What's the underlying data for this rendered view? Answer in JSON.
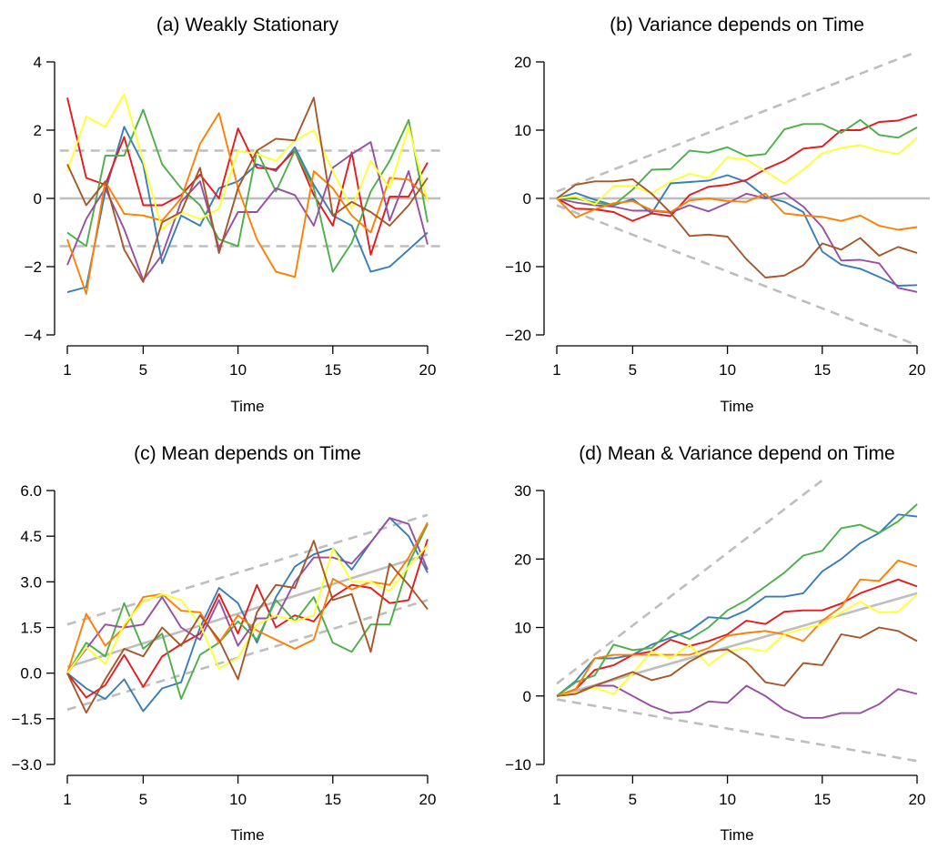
{
  "colors": {
    "blue": "#377EB8",
    "red": "#E41A1C",
    "green": "#4DAF4A",
    "purple": "#984EA3",
    "orange": "#FF7F00",
    "yellow": "#FFFF33",
    "brown": "#A65628",
    "reference": "#BEBEBE"
  },
  "chart_data": [
    {
      "type": "line",
      "title": "(a) Weakly Stationary",
      "xlabel": "Time",
      "ylabel": "",
      "x": [
        1,
        2,
        3,
        4,
        5,
        6,
        7,
        8,
        9,
        10,
        11,
        12,
        13,
        14,
        15,
        16,
        17,
        18,
        19,
        20
      ],
      "xticks": [
        1,
        5,
        10,
        15,
        20
      ],
      "xtick_labels": [
        "1",
        "5",
        "10",
        "15",
        "20"
      ],
      "ylim": [
        -4,
        4
      ],
      "yticks": [
        -4,
        -2,
        0,
        2,
        4
      ],
      "ytick_labels": [
        "−4",
        "−2",
        "0",
        "2",
        "4"
      ],
      "reference_lines": [
        {
          "style": "solid",
          "points": [
            [
              0.6,
              0
            ],
            [
              21,
              0
            ]
          ]
        },
        {
          "style": "dashed",
          "points": [
            [
              0.6,
              1.4
            ],
            [
              21,
              1.4
            ]
          ]
        },
        {
          "style": "dashed",
          "points": [
            [
              0.6,
              -1.4
            ],
            [
              21,
              -1.4
            ]
          ]
        }
      ],
      "series": [
        {
          "color": "blue",
          "values": [
            -2.75,
            -2.6,
            0.2,
            2.1,
            1.0,
            -1.9,
            -0.5,
            -0.8,
            0.3,
            0.5,
            1.0,
            0.8,
            1.5,
            0.4,
            -0.5,
            -0.8,
            -2.15,
            -2.0,
            -1.5,
            -1.0
          ]
        },
        {
          "color": "red",
          "values": [
            2.95,
            0.6,
            0.4,
            1.8,
            -0.2,
            -0.2,
            0.1,
            0.7,
            0.0,
            2.05,
            0.9,
            0.85,
            1.4,
            0.1,
            -0.8,
            1.35,
            -1.65,
            0.05,
            0.05,
            1.05
          ]
        },
        {
          "color": "green",
          "values": [
            -1.0,
            -1.4,
            1.25,
            1.25,
            2.6,
            1.0,
            0.3,
            -0.2,
            -1.2,
            -1.4,
            1.4,
            0.2,
            1.4,
            0.3,
            -2.15,
            -1.3,
            0.2,
            1.1,
            2.3,
            -0.7
          ]
        },
        {
          "color": "purple",
          "values": [
            -1.95,
            -0.6,
            0.3,
            -0.9,
            -2.4,
            -1.65,
            -0.1,
            0.5,
            -1.45,
            -0.4,
            -0.4,
            0.3,
            0.1,
            -0.8,
            0.9,
            1.3,
            1.65,
            -0.65,
            0.8,
            -1.35
          ]
        },
        {
          "color": "orange",
          "values": [
            -1.2,
            -2.8,
            0.5,
            -0.45,
            -0.5,
            -0.65,
            0.0,
            1.6,
            2.5,
            0.3,
            -1.2,
            -2.15,
            -2.3,
            0.8,
            0.3,
            -0.5,
            -1.0,
            0.6,
            0.55,
            0.0
          ]
        },
        {
          "color": "yellow",
          "values": [
            0.8,
            2.4,
            2.1,
            3.05,
            1.1,
            -0.9,
            -0.4,
            -0.6,
            -0.3,
            1.4,
            1.3,
            1.1,
            1.7,
            2.0,
            0.8,
            -0.3,
            1.1,
            0.3,
            2.1,
            -0.1
          ]
        },
        {
          "color": "brown",
          "values": [
            1.0,
            -0.2,
            0.5,
            -1.5,
            -2.45,
            -0.7,
            -0.4,
            0.9,
            -1.6,
            0.3,
            1.4,
            1.75,
            1.7,
            2.95,
            -0.5,
            -0.1,
            -0.4,
            -0.8,
            -0.2,
            0.6
          ]
        }
      ]
    },
    {
      "type": "line",
      "title": "(b) Variance depends on Time",
      "xlabel": "Time",
      "ylabel": "",
      "x": [
        1,
        2,
        3,
        4,
        5,
        6,
        7,
        8,
        9,
        10,
        11,
        12,
        13,
        14,
        15,
        16,
        17,
        18,
        19,
        20
      ],
      "xticks": [
        1,
        5,
        10,
        15,
        20
      ],
      "xtick_labels": [
        "1",
        "5",
        "10",
        "15",
        "20"
      ],
      "ylim": [
        -20,
        20
      ],
      "yticks": [
        -20,
        -10,
        0,
        10,
        20
      ],
      "ytick_labels": [
        "−20",
        "−10",
        "0",
        "10",
        "20"
      ],
      "reference_lines": [
        {
          "style": "solid",
          "points": [
            [
              0.6,
              0
            ],
            [
              21,
              0
            ]
          ]
        },
        {
          "style": "dashed",
          "points": [
            [
              1,
              1
            ],
            [
              20,
              21.5
            ]
          ]
        },
        {
          "style": "dashed",
          "points": [
            [
              1,
              -1
            ],
            [
              20,
              -21.5
            ]
          ]
        }
      ],
      "series": [
        {
          "color": "blue",
          "values": [
            0.0,
            0.8,
            -0.2,
            -1.0,
            -0.1,
            -2.2,
            2.2,
            2.4,
            2.6,
            3.4,
            2.4,
            0.2,
            -0.5,
            -2.0,
            -7.8,
            -9.7,
            -10.3,
            -11.5,
            -12.8,
            -12.7
          ]
        },
        {
          "color": "red",
          "values": [
            0.0,
            -1.5,
            -1.6,
            -2.0,
            -3.3,
            -2.2,
            -2.6,
            0.5,
            1.7,
            2.0,
            2.7,
            4.3,
            5.5,
            7.3,
            7.6,
            10.0,
            10.0,
            11.2,
            11.4,
            12.3
          ]
        },
        {
          "color": "green",
          "values": [
            0.0,
            0.0,
            -0.6,
            -1.0,
            1.3,
            4.2,
            4.3,
            7.0,
            6.7,
            7.5,
            6.2,
            6.5,
            10.1,
            10.9,
            10.9,
            9.6,
            11.5,
            9.3,
            8.9,
            10.4
          ]
        },
        {
          "color": "purple",
          "values": [
            0.0,
            -0.6,
            -1.0,
            -1.2,
            -1.8,
            -1.8,
            -2.1,
            -1.0,
            -1.9,
            -0.7,
            0.7,
            0.0,
            0.8,
            -1.2,
            -4.2,
            -9.1,
            -9.0,
            -9.5,
            -13.1,
            -13.7
          ]
        },
        {
          "color": "orange",
          "values": [
            0.0,
            -2.8,
            -1.6,
            -0.7,
            -0.4,
            -1.7,
            -2.0,
            -0.3,
            0.0,
            -0.4,
            -0.5,
            0.7,
            -2.2,
            -2.5,
            -2.7,
            -3.3,
            -2.5,
            -4.0,
            -4.6,
            -4.2
          ]
        },
        {
          "color": "yellow",
          "values": [
            0.0,
            0.3,
            -0.9,
            1.8,
            1.9,
            0.7,
            2.5,
            3.6,
            3.0,
            6.0,
            5.7,
            4.0,
            2.2,
            4.2,
            6.6,
            7.4,
            7.8,
            7.0,
            6.5,
            8.9
          ]
        },
        {
          "color": "brown",
          "values": [
            0.0,
            2.0,
            2.5,
            2.5,
            2.8,
            0.7,
            -2.1,
            -5.5,
            -5.3,
            -5.6,
            -8.9,
            -11.6,
            -11.3,
            -9.8,
            -6.6,
            -7.5,
            -5.8,
            -8.4,
            -7.1,
            -8.0
          ]
        }
      ]
    },
    {
      "type": "line",
      "title": "(c) Mean depends on Time",
      "xlabel": "Time",
      "ylabel": "",
      "x": [
        1,
        2,
        3,
        4,
        5,
        6,
        7,
        8,
        9,
        10,
        11,
        12,
        13,
        14,
        15,
        16,
        17,
        18,
        19,
        20
      ],
      "xticks": [
        1,
        5,
        10,
        15,
        20
      ],
      "xtick_labels": [
        "1",
        "5",
        "10",
        "15",
        "20"
      ],
      "ylim": [
        -3.0,
        6.0
      ],
      "yticks": [
        -3.0,
        -1.5,
        0.0,
        1.5,
        3.0,
        4.5,
        6.0
      ],
      "ytick_labels": [
        "−3.0",
        "−1.5",
        "0.0",
        "1.5",
        "3.0",
        "4.5",
        "6.0"
      ],
      "reference_lines": [
        {
          "style": "solid",
          "points": [
            [
              1,
              0.2
            ],
            [
              20,
              3.9
            ]
          ]
        },
        {
          "style": "dashed",
          "points": [
            [
              1,
              1.6
            ],
            [
              20,
              5.2
            ]
          ]
        },
        {
          "style": "dashed",
          "points": [
            [
              1,
              -1.2
            ],
            [
              20,
              2.4
            ]
          ]
        }
      ],
      "series": [
        {
          "color": "blue",
          "values": [
            0.0,
            -0.5,
            -0.85,
            -0.2,
            -1.25,
            -0.5,
            -0.3,
            1.5,
            2.8,
            2.3,
            1.0,
            2.5,
            3.5,
            3.9,
            4.1,
            3.4,
            4.3,
            5.1,
            4.5,
            3.3
          ]
        },
        {
          "color": "red",
          "values": [
            0.0,
            -0.8,
            -0.4,
            0.6,
            -0.45,
            0.55,
            0.95,
            1.3,
            2.6,
            1.3,
            2.9,
            1.5,
            1.9,
            1.7,
            2.5,
            2.9,
            2.8,
            2.3,
            2.4,
            4.4
          ]
        },
        {
          "color": "green",
          "values": [
            0.0,
            1.0,
            0.55,
            2.3,
            0.8,
            1.3,
            -0.85,
            0.6,
            1.0,
            1.7,
            1.1,
            2.4,
            1.7,
            2.5,
            1.0,
            0.7,
            1.6,
            1.6,
            3.6,
            4.9
          ]
        },
        {
          "color": "purple",
          "values": [
            0.0,
            0.8,
            1.6,
            1.5,
            1.6,
            2.5,
            1.5,
            1.1,
            2.4,
            0.9,
            1.8,
            1.8,
            3.0,
            3.8,
            3.8,
            3.6,
            4.3,
            5.1,
            4.9,
            3.4
          ]
        },
        {
          "color": "orange",
          "values": [
            0.0,
            1.95,
            0.9,
            1.5,
            2.5,
            2.6,
            2.05,
            2.0,
            1.0,
            1.9,
            1.4,
            1.1,
            0.8,
            1.1,
            3.1,
            2.75,
            3.0,
            2.9,
            3.8,
            4.95
          ]
        },
        {
          "color": "yellow",
          "values": [
            0.0,
            0.85,
            0.3,
            1.6,
            2.35,
            2.6,
            2.4,
            1.6,
            0.15,
            0.5,
            1.6,
            1.9,
            1.7,
            1.9,
            4.1,
            3.0,
            3.0,
            2.7,
            3.5,
            4.2
          ]
        },
        {
          "color": "brown",
          "values": [
            0.0,
            -1.3,
            -0.2,
            0.8,
            0.55,
            1.5,
            0.9,
            1.9,
            1.1,
            -0.2,
            2.0,
            2.9,
            2.8,
            4.35,
            2.4,
            2.6,
            0.7,
            3.6,
            2.9,
            2.1
          ]
        }
      ]
    },
    {
      "type": "line",
      "title": "(d) Mean & Variance depend on Time",
      "xlabel": "Time",
      "ylabel": "",
      "x": [
        1,
        2,
        3,
        4,
        5,
        6,
        7,
        8,
        9,
        10,
        11,
        12,
        13,
        14,
        15,
        16,
        17,
        18,
        19,
        20
      ],
      "xticks": [
        1,
        5,
        10,
        15,
        20
      ],
      "xtick_labels": [
        "1",
        "5",
        "10",
        "15",
        "20"
      ],
      "ylim": [
        -10,
        30
      ],
      "yticks": [
        -10,
        0,
        10,
        20,
        30
      ],
      "ytick_labels": [
        "−10",
        "0",
        "10",
        "20",
        "30"
      ],
      "reference_lines": [
        {
          "style": "solid",
          "points": [
            [
              1,
              0
            ],
            [
              20,
              15
            ]
          ]
        },
        {
          "style": "dashed",
          "points": [
            [
              1,
              1.8
            ],
            [
              15,
              31.5
            ]
          ]
        },
        {
          "style": "dashed",
          "points": [
            [
              1,
              -0.5
            ],
            [
              20,
              -9.5
            ]
          ]
        }
      ],
      "series": [
        {
          "color": "blue",
          "values": [
            0.0,
            2.2,
            5.5,
            5.5,
            6.0,
            7.5,
            8.5,
            9.5,
            11.5,
            11.3,
            12.5,
            14.5,
            14.5,
            15.0,
            18.2,
            20.0,
            22.3,
            23.8,
            26.5,
            26.2
          ]
        },
        {
          "color": "red",
          "values": [
            0.0,
            1.0,
            3.8,
            4.5,
            6.0,
            6.5,
            8.2,
            7.3,
            8.0,
            9.0,
            11.0,
            10.5,
            12.3,
            12.5,
            12.5,
            13.5,
            15.0,
            16.0,
            17.0,
            16.0
          ]
        },
        {
          "color": "green",
          "values": [
            0.0,
            2.0,
            3.0,
            7.5,
            6.7,
            7.0,
            9.5,
            8.3,
            10.0,
            12.5,
            14.0,
            16.0,
            18.0,
            20.5,
            21.2,
            24.5,
            25.0,
            23.8,
            25.5,
            28.0
          ]
        },
        {
          "color": "purple",
          "values": [
            0.0,
            0.5,
            1.5,
            1.5,
            0.0,
            -1.5,
            -2.5,
            -2.3,
            -0.8,
            -1.0,
            1.5,
            0.0,
            -2.0,
            -3.2,
            -3.2,
            -2.5,
            -2.5,
            -1.2,
            1.0,
            0.3
          ]
        },
        {
          "color": "orange",
          "values": [
            0.0,
            1.0,
            5.5,
            6.0,
            6.0,
            6.0,
            6.0,
            6.0,
            7.0,
            8.8,
            9.2,
            9.5,
            9.0,
            8.0,
            11.0,
            13.0,
            17.0,
            16.8,
            19.8,
            18.9
          ]
        },
        {
          "color": "yellow",
          "values": [
            0.0,
            0.5,
            1.2,
            0.3,
            3.3,
            6.5,
            5.5,
            7.5,
            4.5,
            6.5,
            7.0,
            6.5,
            9.0,
            9.8,
            10.5,
            12.2,
            13.8,
            12.2,
            12.3,
            14.8
          ]
        },
        {
          "color": "brown",
          "values": [
            0.0,
            0.3,
            1.5,
            2.5,
            3.5,
            2.3,
            3.0,
            5.0,
            6.5,
            6.8,
            5.0,
            2.0,
            1.5,
            4.8,
            4.5,
            9.0,
            8.5,
            10.0,
            9.5,
            8.0
          ]
        }
      ]
    }
  ]
}
